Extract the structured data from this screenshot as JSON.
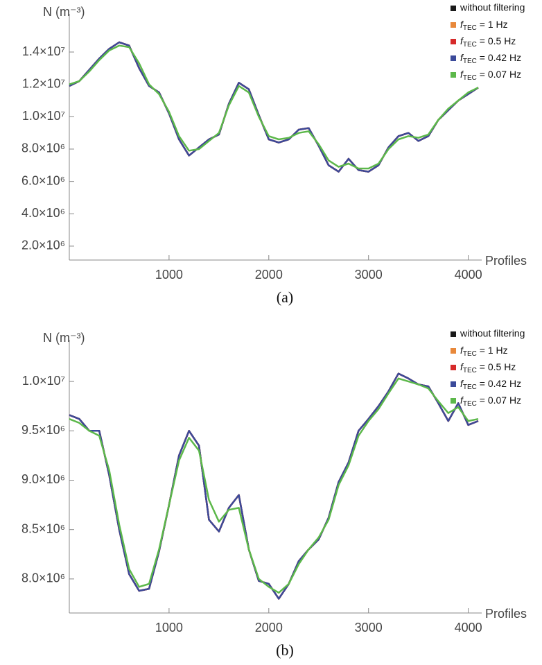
{
  "chart_data": [
    {
      "type": "line",
      "caption": "(a)",
      "y_label": "N (m⁻³)",
      "x_label": "Profiles",
      "xlim": [
        0,
        4100
      ],
      "xticks": [
        1000,
        2000,
        3000,
        4000
      ],
      "ylim": [
        1140000,
        15930000
      ],
      "yticks": [
        {
          "value": 2000000,
          "label": "2.0×10⁶"
        },
        {
          "value": 4000000,
          "label": "4.0×10⁶"
        },
        {
          "value": 6000000,
          "label": "6.0×10⁶"
        },
        {
          "value": 8000000,
          "label": "8.0×10⁶"
        },
        {
          "value": 10000000,
          "label": "1.0×10⁷"
        },
        {
          "value": 12000000,
          "label": "1.2×10⁷"
        },
        {
          "value": 14000000,
          "label": "1.4×10⁷"
        }
      ],
      "legend": "top-right",
      "x": [
        0,
        100,
        200,
        300,
        400,
        500,
        600,
        700,
        800,
        900,
        1000,
        1100,
        1200,
        1300,
        1400,
        1500,
        1600,
        1700,
        1800,
        1900,
        2000,
        2100,
        2200,
        2300,
        2400,
        2500,
        2600,
        2700,
        2800,
        2900,
        3000,
        3100,
        3200,
        3300,
        3400,
        3500,
        3600,
        3700,
        3800,
        3900,
        4000,
        4100
      ],
      "series": [
        {
          "name": "without filtering",
          "color": "#1a1a1a",
          "values": [
            11900000,
            12200000,
            12900000,
            13600000,
            14200000,
            14600000,
            14400000,
            13000000,
            11900000,
            11500000,
            10200000,
            8600000,
            7600000,
            8100000,
            8600000,
            8900000,
            10800000,
            12100000,
            11700000,
            10100000,
            8600000,
            8400000,
            8600000,
            9200000,
            9300000,
            8200000,
            7000000,
            6600000,
            7400000,
            6700000,
            6600000,
            7000000,
            8100000,
            8800000,
            9000000,
            8500000,
            8800000,
            9800000,
            10400000,
            11000000,
            11400000,
            11800000
          ]
        },
        {
          "name": "fTEC = 1 Hz",
          "color": "#e8883a",
          "values": [
            11900000,
            12200000,
            12900000,
            13600000,
            14200000,
            14600000,
            14400000,
            13000000,
            11900000,
            11500000,
            10200000,
            8600000,
            7600000,
            8100000,
            8600000,
            8900000,
            10800000,
            12100000,
            11700000,
            10100000,
            8600000,
            8400000,
            8600000,
            9200000,
            9300000,
            8200000,
            7000000,
            6600000,
            7400000,
            6700000,
            6600000,
            7000000,
            8100000,
            8800000,
            9000000,
            8500000,
            8800000,
            9800000,
            10400000,
            11000000,
            11400000,
            11800000
          ]
        },
        {
          "name": "fTEC = 0.5 Hz",
          "color": "#d62a2a",
          "values": [
            11900000,
            12200000,
            12900000,
            13600000,
            14200000,
            14600000,
            14400000,
            13000000,
            11900000,
            11500000,
            10200000,
            8600000,
            7600000,
            8100000,
            8600000,
            8900000,
            10800000,
            12100000,
            11700000,
            10100000,
            8600000,
            8400000,
            8600000,
            9200000,
            9300000,
            8200000,
            7000000,
            6600000,
            7400000,
            6700000,
            6600000,
            7000000,
            8100000,
            8800000,
            9000000,
            8500000,
            8800000,
            9800000,
            10400000,
            11000000,
            11400000,
            11800000
          ]
        },
        {
          "name": "fTEC = 0.42 Hz",
          "color": "#3b4a9a",
          "values": [
            11900000,
            12200000,
            12900000,
            13600000,
            14200000,
            14600000,
            14400000,
            13000000,
            11900000,
            11500000,
            10200000,
            8600000,
            7600000,
            8100000,
            8600000,
            8900000,
            10800000,
            12100000,
            11700000,
            10100000,
            8600000,
            8400000,
            8600000,
            9200000,
            9300000,
            8200000,
            7000000,
            6600000,
            7400000,
            6700000,
            6600000,
            7000000,
            8100000,
            8800000,
            9000000,
            8500000,
            8800000,
            9800000,
            10400000,
            11000000,
            11400000,
            11800000
          ]
        },
        {
          "name": "fTEC = 0.07 Hz",
          "color": "#5cb84a",
          "values": [
            12000000,
            12200000,
            12800000,
            13500000,
            14100000,
            14400000,
            14300000,
            13300000,
            12000000,
            11400000,
            10300000,
            8800000,
            7900000,
            8000000,
            8500000,
            9000000,
            10700000,
            11900000,
            11500000,
            10000000,
            8800000,
            8600000,
            8700000,
            9000000,
            9100000,
            8300000,
            7300000,
            6900000,
            7100000,
            6800000,
            6800000,
            7100000,
            8000000,
            8600000,
            8800000,
            8700000,
            8900000,
            9800000,
            10500000,
            11000000,
            11500000,
            11800000
          ]
        }
      ]
    },
    {
      "type": "line",
      "caption": "(b)",
      "y_label": "N (m⁻³)",
      "x_label": "Profiles",
      "xlim": [
        0,
        4100
      ],
      "xticks": [
        1000,
        2000,
        3000,
        4000
      ],
      "ylim": [
        7655000,
        10352000
      ],
      "yticks": [
        {
          "value": 8000000,
          "label": "8.0×10⁶"
        },
        {
          "value": 8500000,
          "label": "8.5×10⁶"
        },
        {
          "value": 9000000,
          "label": "9.0×10⁶"
        },
        {
          "value": 9500000,
          "label": "9.5×10⁶"
        },
        {
          "value": 10000000,
          "label": "1.0×10⁷"
        }
      ],
      "legend": "top-right",
      "x": [
        0,
        100,
        200,
        300,
        400,
        500,
        600,
        700,
        800,
        900,
        1000,
        1100,
        1200,
        1300,
        1400,
        1500,
        1600,
        1700,
        1800,
        1900,
        2000,
        2100,
        2200,
        2300,
        2400,
        2500,
        2600,
        2700,
        2800,
        2900,
        3000,
        3100,
        3200,
        3300,
        3400,
        3500,
        3600,
        3700,
        3800,
        3900,
        4000,
        4100
      ],
      "series": [
        {
          "name": "without filtering",
          "color": "#1a1a1a",
          "values": [
            9660000,
            9620000,
            9500000,
            9500000,
            9050000,
            8500000,
            8050000,
            7880000,
            7900000,
            8280000,
            8750000,
            9250000,
            9500000,
            9350000,
            8600000,
            8480000,
            8720000,
            8850000,
            8300000,
            7980000,
            7950000,
            7800000,
            7950000,
            8180000,
            8300000,
            8400000,
            8620000,
            8980000,
            9180000,
            9500000,
            9620000,
            9750000,
            9900000,
            10080000,
            10030000,
            9970000,
            9950000,
            9780000,
            9600000,
            9780000,
            9560000,
            9600000
          ]
        },
        {
          "name": "fTEC = 1 Hz",
          "color": "#e8883a",
          "values": [
            9660000,
            9620000,
            9500000,
            9500000,
            9050000,
            8500000,
            8050000,
            7880000,
            7900000,
            8280000,
            8750000,
            9250000,
            9500000,
            9350000,
            8600000,
            8480000,
            8720000,
            8850000,
            8300000,
            7980000,
            7950000,
            7800000,
            7950000,
            8180000,
            8300000,
            8400000,
            8620000,
            8980000,
            9180000,
            9500000,
            9620000,
            9750000,
            9900000,
            10080000,
            10030000,
            9970000,
            9950000,
            9780000,
            9600000,
            9780000,
            9560000,
            9600000
          ]
        },
        {
          "name": "fTEC = 0.5 Hz",
          "color": "#d62a2a",
          "values": [
            9660000,
            9620000,
            9500000,
            9500000,
            9050000,
            8500000,
            8050000,
            7880000,
            7900000,
            8280000,
            8750000,
            9250000,
            9500000,
            9350000,
            8600000,
            8480000,
            8720000,
            8850000,
            8300000,
            7980000,
            7950000,
            7800000,
            7950000,
            8180000,
            8300000,
            8400000,
            8620000,
            8980000,
            9180000,
            9500000,
            9620000,
            9750000,
            9900000,
            10080000,
            10030000,
            9970000,
            9950000,
            9780000,
            9600000,
            9780000,
            9560000,
            9600000
          ]
        },
        {
          "name": "fTEC = 0.42 Hz",
          "color": "#3b4a9a",
          "values": [
            9660000,
            9620000,
            9500000,
            9500000,
            9050000,
            8500000,
            8050000,
            7880000,
            7900000,
            8280000,
            8750000,
            9250000,
            9500000,
            9350000,
            8600000,
            8480000,
            8720000,
            8850000,
            8300000,
            7980000,
            7950000,
            7800000,
            7950000,
            8180000,
            8300000,
            8400000,
            8620000,
            8980000,
            9180000,
            9500000,
            9620000,
            9750000,
            9900000,
            10080000,
            10030000,
            9970000,
            9950000,
            9780000,
            9600000,
            9780000,
            9560000,
            9600000
          ]
        },
        {
          "name": "fTEC = 0.07 Hz",
          "color": "#5cb84a",
          "values": [
            9620000,
            9580000,
            9500000,
            9450000,
            9100000,
            8550000,
            8100000,
            7920000,
            7950000,
            8300000,
            8750000,
            9200000,
            9430000,
            9300000,
            8800000,
            8580000,
            8700000,
            8720000,
            8300000,
            8000000,
            7920000,
            7860000,
            7950000,
            8150000,
            8300000,
            8420000,
            8600000,
            8950000,
            9150000,
            9450000,
            9600000,
            9720000,
            9880000,
            10030000,
            10000000,
            9970000,
            9930000,
            9800000,
            9680000,
            9740000,
            9600000,
            9620000
          ]
        }
      ]
    }
  ]
}
